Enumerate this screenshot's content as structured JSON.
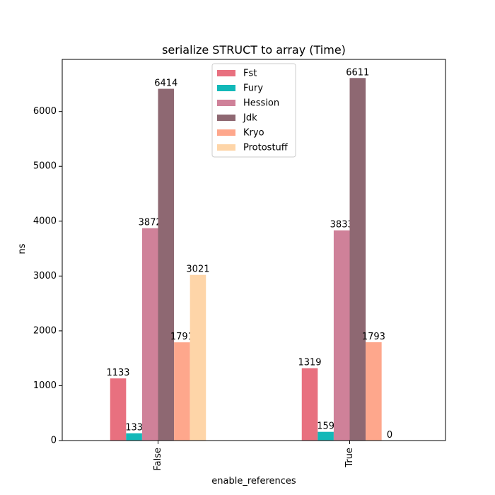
{
  "chart_data": {
    "type": "bar",
    "title": "serialize STRUCT to array (Time)",
    "xlabel": "enable_references",
    "ylabel": "ns",
    "categories": [
      "False",
      "True"
    ],
    "ylim": [
      0,
      6950
    ],
    "yticks": [
      0,
      1000,
      2000,
      3000,
      4000,
      5000,
      6000
    ],
    "grid": false,
    "legend_position": "top-center",
    "series": [
      {
        "name": "Fst",
        "color": "#e8707f",
        "values": [
          1133,
          1319
        ],
        "labels": [
          "1133",
          "1319"
        ]
      },
      {
        "name": "Fury",
        "color": "#12b8b8",
        "values": [
          133,
          159
        ],
        "labels": [
          "133",
          "159"
        ]
      },
      {
        "name": "Hession",
        "color": "#cf8199",
        "values": [
          3872,
          3833
        ],
        "labels": [
          "3872",
          "3833"
        ]
      },
      {
        "name": "Jdk",
        "color": "#8e6872",
        "values": [
          6414,
          6611
        ],
        "labels": [
          "6414",
          "6611"
        ]
      },
      {
        "name": "Kryo",
        "color": "#fea78c",
        "values": [
          1791,
          1793
        ],
        "labels": [
          "1791",
          "1793"
        ]
      },
      {
        "name": "Protostuff",
        "color": "#fed5a8",
        "values": [
          3021,
          0
        ],
        "labels": [
          "3021",
          "0"
        ]
      }
    ]
  }
}
